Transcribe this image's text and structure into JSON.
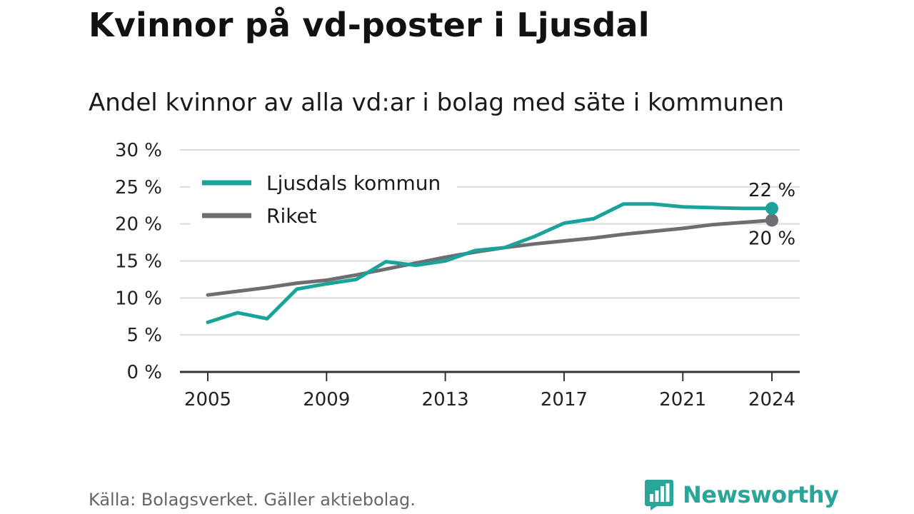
{
  "header": {
    "title": "Kvinnor på vd-poster i Ljusdal",
    "subtitle": "Andel kvinnor av alla vd:ar i bolag med säte i kommunen"
  },
  "footer": {
    "source": "Källa: Bolagsverket. Gäller aktiebolag.",
    "brand": "Newsworthy",
    "brand_icon": "bar-chart-speech-bubble-icon"
  },
  "colors": {
    "ljusdal": "#1aa39a",
    "riket": "#6e6d72",
    "grid": "#dddddd",
    "axis": "#333333",
    "brand": "#2aa59a"
  },
  "chart_data": {
    "type": "line",
    "title": "",
    "xlabel": "",
    "ylabel": "",
    "xlim": [
      2005,
      2024
    ],
    "ylim": [
      0,
      30
    ],
    "y_ticks": [
      0,
      5,
      10,
      15,
      20,
      25,
      30
    ],
    "y_tick_labels": [
      "0 %",
      "5 %",
      "10 %",
      "15 %",
      "20 %",
      "25 %",
      "30 %"
    ],
    "x_ticks": [
      2005,
      2009,
      2013,
      2017,
      2021,
      2024
    ],
    "x_tick_labels": [
      "2005",
      "2009",
      "2013",
      "2017",
      "2021",
      "2024"
    ],
    "grid": true,
    "legend": "top-left",
    "x": [
      2005,
      2006,
      2007,
      2008,
      2009,
      2010,
      2011,
      2012,
      2013,
      2014,
      2015,
      2016,
      2017,
      2018,
      2019,
      2020,
      2021,
      2022,
      2023,
      2024
    ],
    "series": [
      {
        "name": "Ljusdals kommun",
        "color": "#1aa39a",
        "values": [
          6.7,
          8.0,
          7.2,
          11.2,
          11.9,
          12.5,
          14.9,
          14.4,
          15.0,
          16.4,
          16.8,
          18.3,
          20.1,
          20.7,
          22.7,
          22.7,
          22.3,
          22.2,
          22.1,
          22.1
        ],
        "end_label": "22 %"
      },
      {
        "name": "Riket",
        "color": "#6e6d72",
        "values": [
          10.4,
          10.9,
          11.4,
          12.0,
          12.4,
          13.1,
          13.9,
          14.7,
          15.5,
          16.2,
          16.8,
          17.3,
          17.7,
          18.1,
          18.6,
          19.0,
          19.4,
          19.9,
          20.2,
          20.5
        ],
        "end_label": "20 %"
      }
    ]
  }
}
